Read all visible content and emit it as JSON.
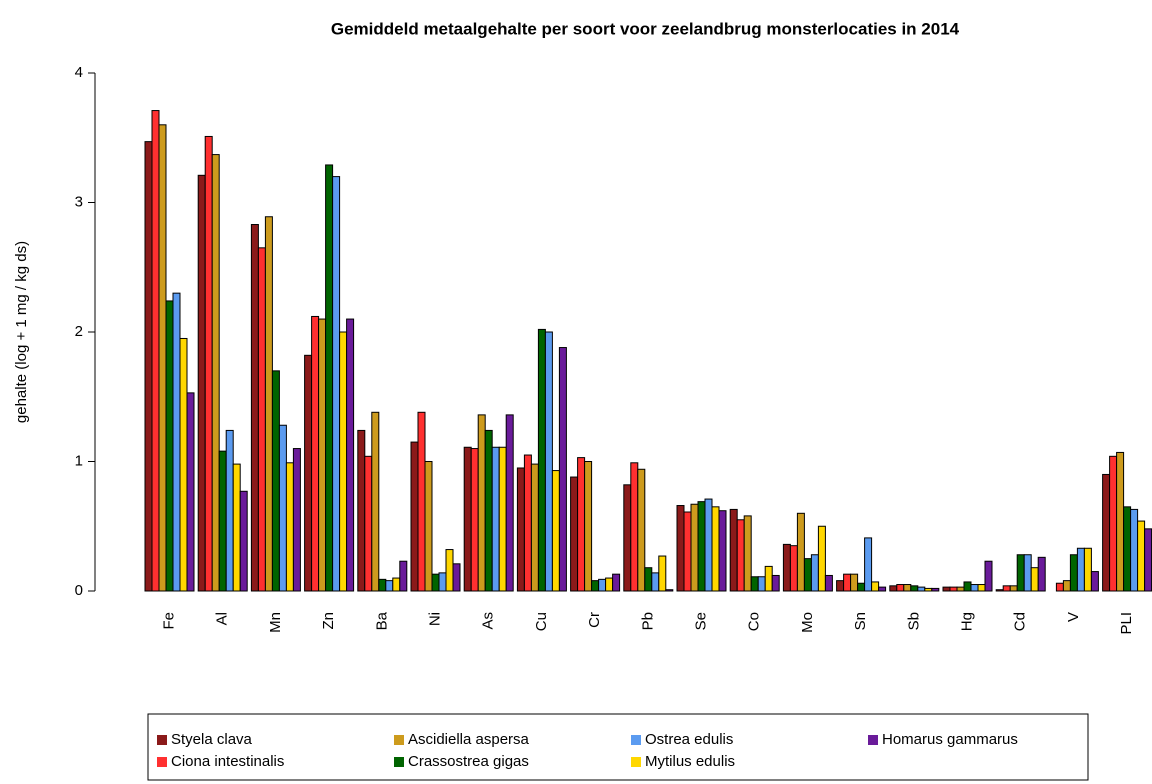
{
  "chart_data": {
    "type": "bar",
    "title": "Gemiddeld metaalgehalte per soort voor zeelandbrug monsterlocaties in 2014",
    "y_label": "gehalte (log + 1 mg / kg ds)",
    "categories": [
      "Fe",
      "Al",
      "Mn",
      "Zn",
      "Ba",
      "Ni",
      "As",
      "Cu",
      "Cr",
      "Pb",
      "Se",
      "Co",
      "Mo",
      "Sn",
      "Sb",
      "Hg",
      "Cd",
      "V",
      "PLI"
    ],
    "series": [
      {
        "name": "Styela clava",
        "color": "#8b1a1a",
        "values": [
          3.47,
          3.21,
          2.83,
          1.82,
          1.24,
          1.15,
          1.11,
          0.95,
          0.88,
          0.82,
          0.66,
          0.63,
          0.36,
          0.08,
          0.04,
          0.03,
          0.01,
          0.0,
          0.9
        ]
      },
      {
        "name": "Ciona intestinalis",
        "color": "#ff3030",
        "values": [
          3.71,
          3.51,
          2.65,
          2.12,
          1.04,
          1.38,
          1.1,
          1.05,
          1.03,
          0.99,
          0.61,
          0.55,
          0.35,
          0.13,
          0.05,
          0.03,
          0.04,
          0.06,
          1.04
        ]
      },
      {
        "name": "Ascidiella aspersa",
        "color": "#cd9b1d",
        "values": [
          3.6,
          3.37,
          2.89,
          2.1,
          1.38,
          1.0,
          1.36,
          0.98,
          1.0,
          0.94,
          0.67,
          0.58,
          0.6,
          0.13,
          0.05,
          0.03,
          0.04,
          0.08,
          1.07
        ]
      },
      {
        "name": "Crassostrea gigas",
        "color": "#006400",
        "values": [
          2.24,
          1.08,
          1.7,
          3.29,
          0.09,
          0.13,
          1.24,
          2.02,
          0.08,
          0.18,
          0.69,
          0.11,
          0.25,
          0.06,
          0.04,
          0.07,
          0.28,
          0.28,
          0.65
        ]
      },
      {
        "name": "Ostrea edulis",
        "color": "#5b9bf0",
        "values": [
          2.3,
          1.24,
          1.28,
          3.2,
          0.08,
          0.14,
          1.11,
          2.0,
          0.09,
          0.14,
          0.71,
          0.11,
          0.28,
          0.41,
          0.03,
          0.05,
          0.28,
          0.33,
          0.63
        ]
      },
      {
        "name": "Mytilus edulis",
        "color": "#ffd700",
        "values": [
          1.95,
          0.98,
          0.99,
          2.0,
          0.1,
          0.32,
          1.11,
          0.93,
          0.1,
          0.27,
          0.65,
          0.19,
          0.5,
          0.07,
          0.02,
          0.05,
          0.18,
          0.33,
          0.54
        ]
      },
      {
        "name": "Homarus gammarus",
        "color": "#6a1b9a",
        "values": [
          1.53,
          0.77,
          1.1,
          2.1,
          0.23,
          0.21,
          1.36,
          1.88,
          0.13,
          0.01,
          0.62,
          0.12,
          0.12,
          0.03,
          0.02,
          0.23,
          0.26,
          0.15,
          0.48
        ]
      }
    ],
    "ylim": [
      0,
      4
    ],
    "yticks": [
      0,
      1,
      2,
      3,
      4
    ],
    "legend": "bottom"
  }
}
